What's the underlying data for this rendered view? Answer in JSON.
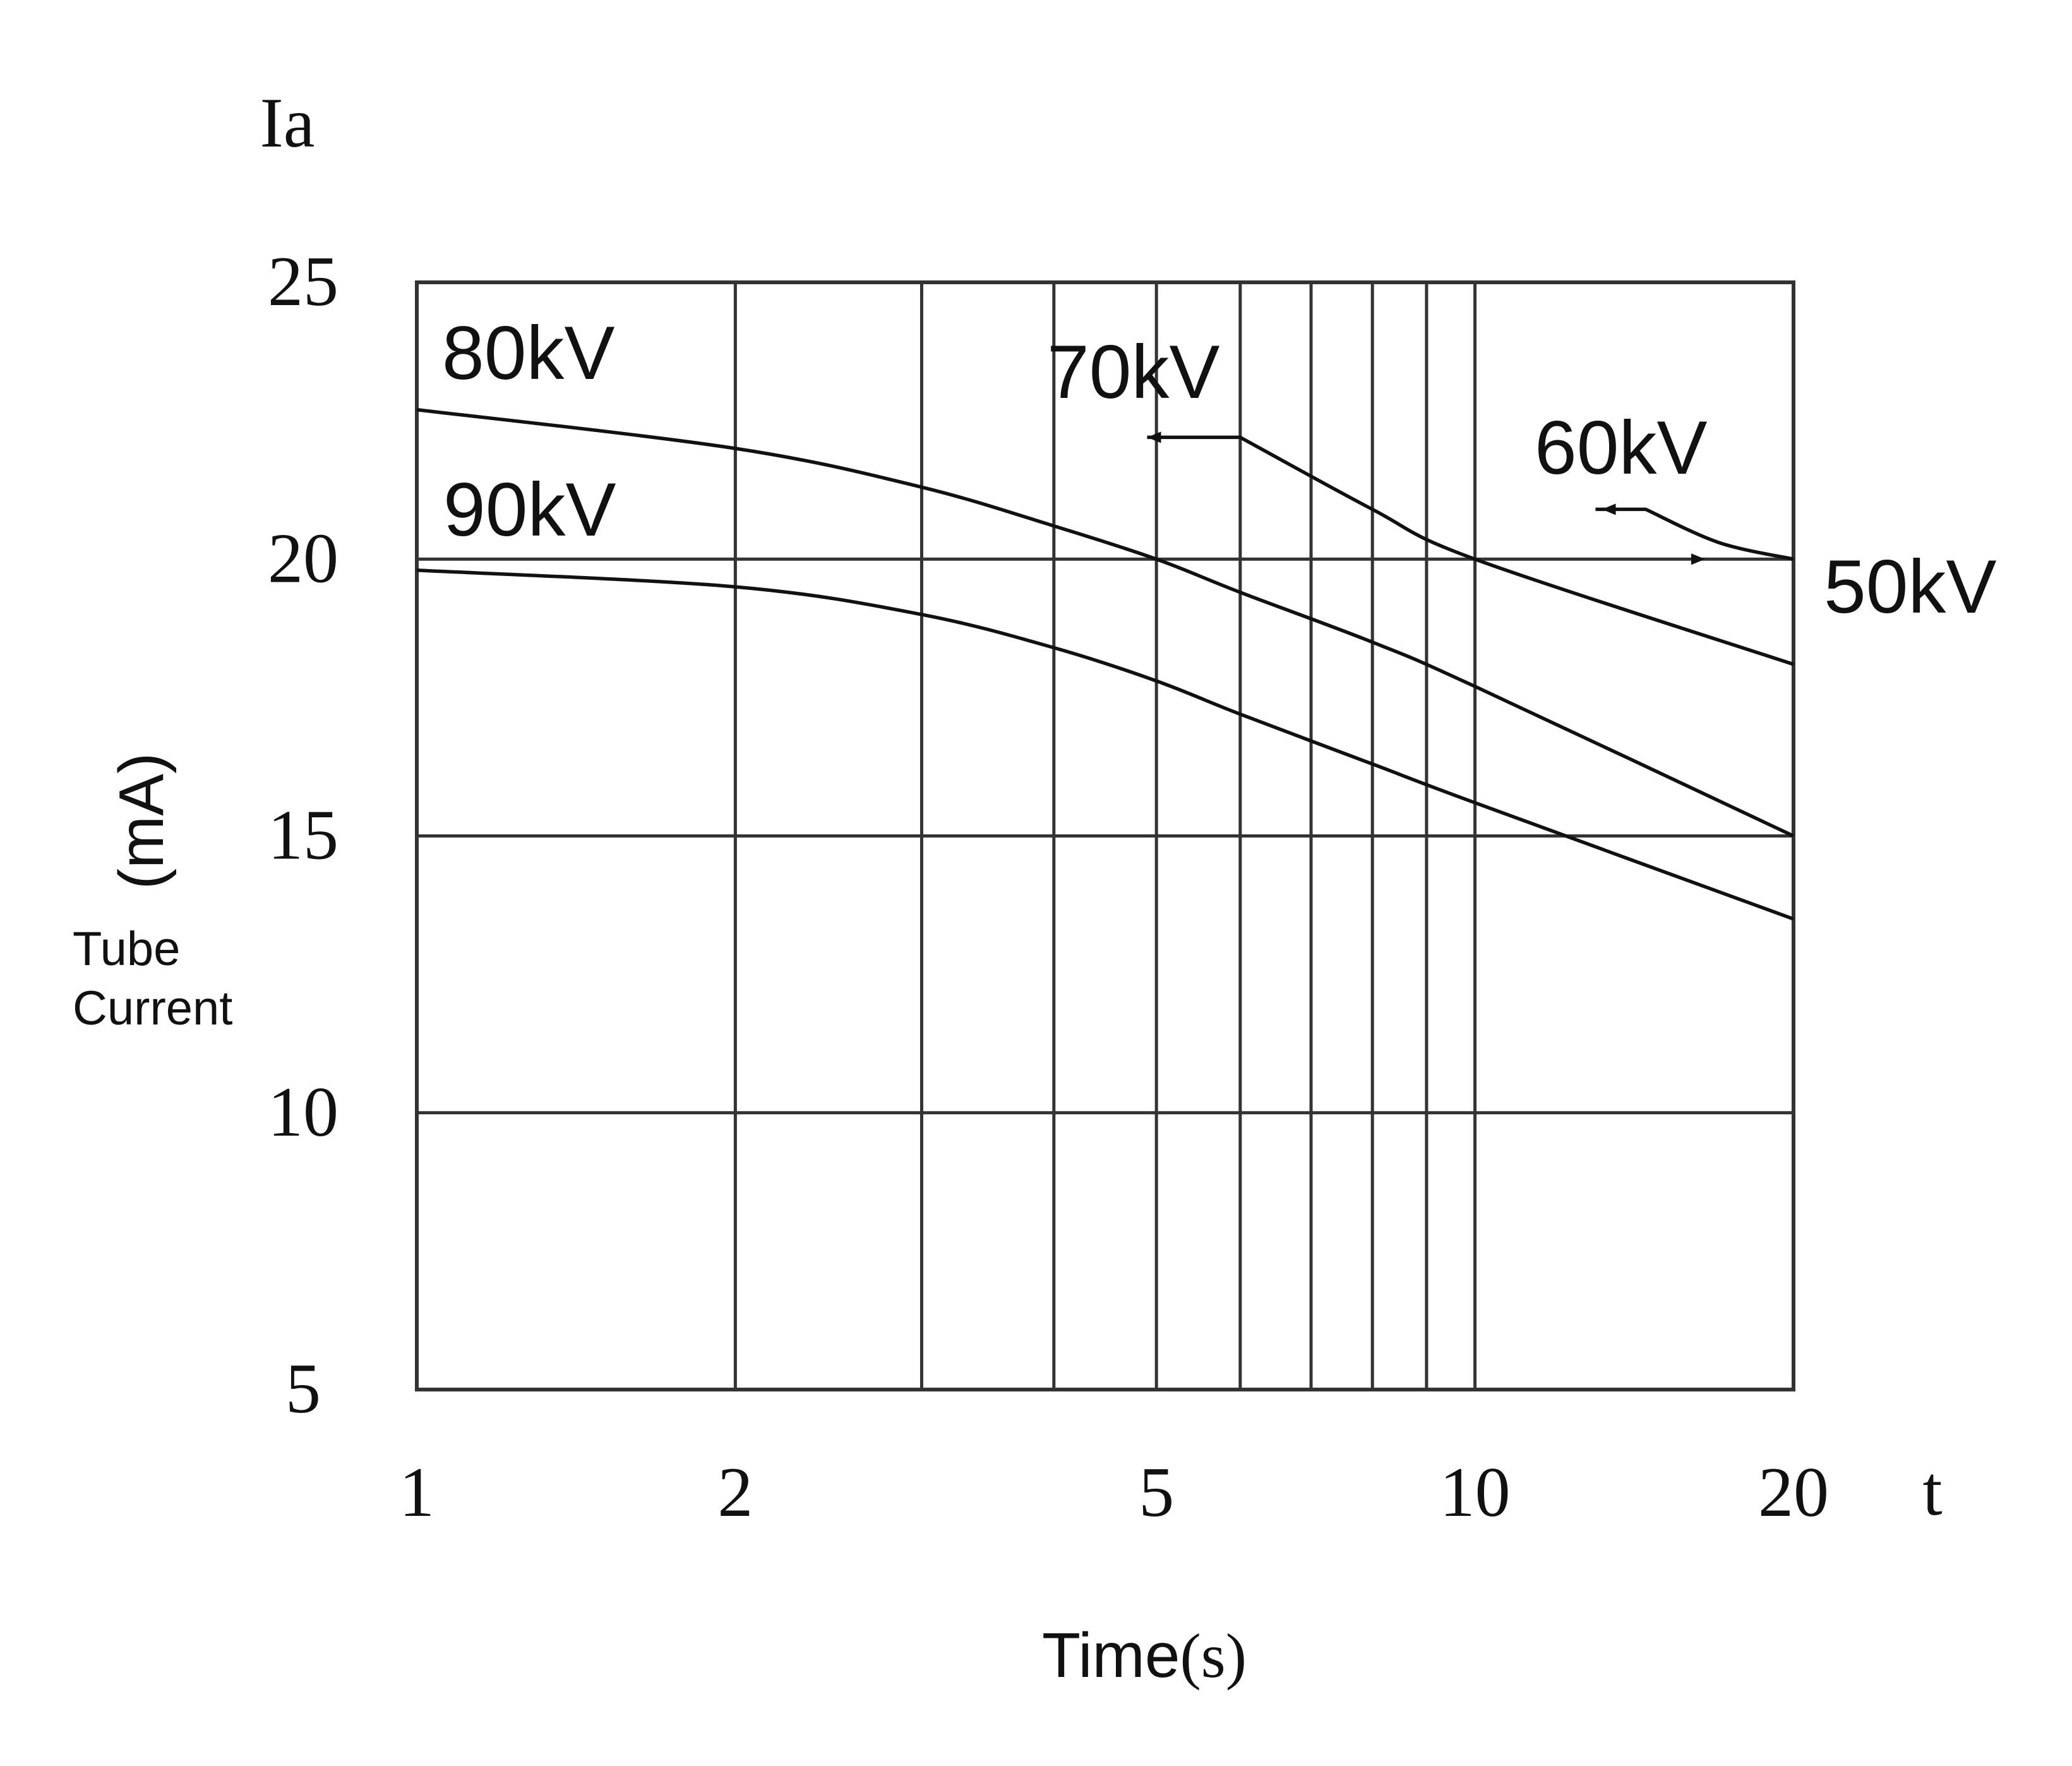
{
  "chart_data": {
    "type": "line",
    "y_symbol": "Ia",
    "x_symbol": "t",
    "y_unit": "(mA)",
    "y_caption_line1": "Tube",
    "y_caption_line2": "Current",
    "x_caption_word": "Time",
    "x_caption_unit": "(s)",
    "x_scale": "log",
    "xlim": [
      1,
      20
    ],
    "ylim": [
      5,
      25
    ],
    "x_gridlines": [
      1,
      2,
      3,
      4,
      5,
      6,
      7,
      8,
      9,
      10,
      20
    ],
    "x_tick_labels": [
      {
        "value": 1,
        "label": "1"
      },
      {
        "value": 2,
        "label": "2"
      },
      {
        "value": 5,
        "label": "5"
      },
      {
        "value": 10,
        "label": "10"
      },
      {
        "value": 20,
        "label": "20"
      }
    ],
    "y_gridlines": [
      5,
      10,
      15,
      20,
      25
    ],
    "y_tick_labels": [
      {
        "value": 25,
        "label": "25"
      },
      {
        "value": 20,
        "label": "20"
      },
      {
        "value": 15,
        "label": "15"
      },
      {
        "value": 10,
        "label": "10"
      },
      {
        "value": 5,
        "label": "5"
      }
    ],
    "grid": true,
    "series": [
      {
        "name": "80kV",
        "x": [
          1,
          2,
          3,
          4,
          5,
          6,
          8,
          10,
          20
        ],
        "y": [
          22.7,
          22.0,
          21.3,
          20.6,
          20.0,
          19.4,
          18.5,
          17.7,
          15.0
        ]
      },
      {
        "name": "90kV",
        "x": [
          1,
          2,
          3,
          4,
          5,
          6,
          8,
          10,
          20
        ],
        "y": [
          19.8,
          19.5,
          19.0,
          18.4,
          17.8,
          17.2,
          16.3,
          15.6,
          13.5
        ]
      },
      {
        "name": "70kV",
        "x": [
          4.9,
          6.0,
          8.0,
          10.0,
          20.0
        ],
        "y": [
          22.2,
          22.2,
          20.9,
          20.0,
          18.1
        ]
      },
      {
        "name": "60kV",
        "x": [
          13.0,
          14.5,
          17.0,
          20.0
        ],
        "y": [
          20.9,
          20.9,
          20.3,
          20.0
        ]
      },
      {
        "name": "50kV",
        "x": [
          1,
          20
        ],
        "y": [
          20.0,
          20.0
        ]
      }
    ],
    "annotations": [
      {
        "text": "80kV"
      },
      {
        "text": "90kV"
      },
      {
        "text": "70kV"
      },
      {
        "text": "60kV"
      },
      {
        "text": "50kV"
      }
    ],
    "line_color": "#111111",
    "grid_color": "#333333"
  }
}
